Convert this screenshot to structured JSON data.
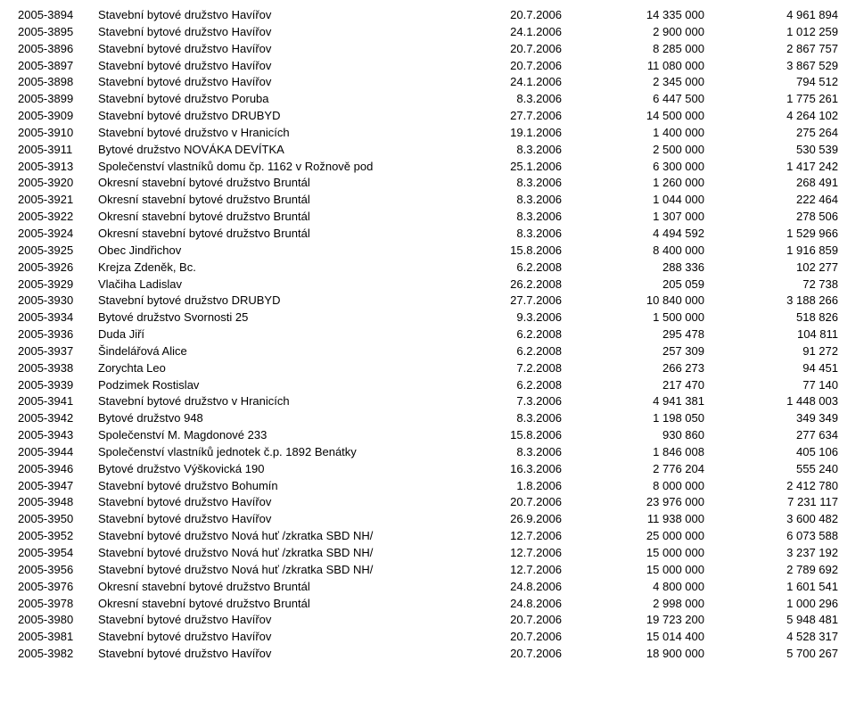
{
  "rows": [
    {
      "id": "2005-3894",
      "name": "Stavební bytové družstvo Havířov",
      "date": "20.7.2006",
      "amt1": "14 335 000",
      "amt2": "4 961 894"
    },
    {
      "id": "2005-3895",
      "name": "Stavební bytové družstvo Havířov",
      "date": "24.1.2006",
      "amt1": "2 900 000",
      "amt2": "1 012 259"
    },
    {
      "id": "2005-3896",
      "name": "Stavební bytové družstvo Havířov",
      "date": "20.7.2006",
      "amt1": "8 285 000",
      "amt2": "2 867 757"
    },
    {
      "id": "2005-3897",
      "name": "Stavební bytové družstvo Havířov",
      "date": "20.7.2006",
      "amt1": "11 080 000",
      "amt2": "3 867 529"
    },
    {
      "id": "2005-3898",
      "name": "Stavební bytové družstvo Havířov",
      "date": "24.1.2006",
      "amt1": "2 345 000",
      "amt2": "794 512"
    },
    {
      "id": "2005-3899",
      "name": "Stavební bytové družstvo Poruba",
      "date": "8.3.2006",
      "amt1": "6 447 500",
      "amt2": "1 775 261"
    },
    {
      "id": "2005-3909",
      "name": "Stavební bytové družstvo DRUBYD",
      "date": "27.7.2006",
      "amt1": "14 500 000",
      "amt2": "4 264 102"
    },
    {
      "id": "2005-3910",
      "name": "Stavební bytové družstvo v Hranicích",
      "date": "19.1.2006",
      "amt1": "1 400 000",
      "amt2": "275 264"
    },
    {
      "id": "2005-3911",
      "name": "Bytové družstvo NOVÁKA DEVÍTKA",
      "date": "8.3.2006",
      "amt1": "2 500 000",
      "amt2": "530 539"
    },
    {
      "id": "2005-3913",
      "name": "Společenství vlastníků domu čp. 1162 v Rožnově pod",
      "date": "25.1.2006",
      "amt1": "6 300 000",
      "amt2": "1 417 242"
    },
    {
      "id": "2005-3920",
      "name": "Okresní stavební bytové družstvo Bruntál",
      "date": "8.3.2006",
      "amt1": "1 260 000",
      "amt2": "268 491"
    },
    {
      "id": "2005-3921",
      "name": "Okresní stavební bytové družstvo Bruntál",
      "date": "8.3.2006",
      "amt1": "1 044 000",
      "amt2": "222 464"
    },
    {
      "id": "2005-3922",
      "name": "Okresní stavební bytové družstvo Bruntál",
      "date": "8.3.2006",
      "amt1": "1 307 000",
      "amt2": "278 506"
    },
    {
      "id": "2005-3924",
      "name": "Okresní stavební bytové družstvo Bruntál",
      "date": "8.3.2006",
      "amt1": "4 494 592",
      "amt2": "1 529 966"
    },
    {
      "id": "2005-3925",
      "name": "Obec Jindřichov",
      "date": "15.8.2006",
      "amt1": "8 400 000",
      "amt2": "1 916 859"
    },
    {
      "id": "2005-3926",
      "name": "Krejza Zdeněk, Bc.",
      "date": "6.2.2008",
      "amt1": "288 336",
      "amt2": "102 277"
    },
    {
      "id": "2005-3929",
      "name": "Vlačiha Ladislav",
      "date": "26.2.2008",
      "amt1": "205 059",
      "amt2": "72 738"
    },
    {
      "id": "2005-3930",
      "name": "Stavební bytové družstvo DRUBYD",
      "date": "27.7.2006",
      "amt1": "10 840 000",
      "amt2": "3 188 266"
    },
    {
      "id": "2005-3934",
      "name": "Bytové družstvo Svornosti 25",
      "date": "9.3.2006",
      "amt1": "1 500 000",
      "amt2": "518 826"
    },
    {
      "id": "2005-3936",
      "name": "Duda Jiří",
      "date": "6.2.2008",
      "amt1": "295 478",
      "amt2": "104 811"
    },
    {
      "id": "2005-3937",
      "name": "Šindelářová Alice",
      "date": "6.2.2008",
      "amt1": "257 309",
      "amt2": "91 272"
    },
    {
      "id": "2005-3938",
      "name": "Zorychta Leo",
      "date": "7.2.2008",
      "amt1": "266 273",
      "amt2": "94 451"
    },
    {
      "id": "2005-3939",
      "name": "Podzimek Rostislav",
      "date": "6.2.2008",
      "amt1": "217 470",
      "amt2": "77 140"
    },
    {
      "id": "2005-3941",
      "name": "Stavební bytové družstvo v Hranicích",
      "date": "7.3.2006",
      "amt1": "4 941 381",
      "amt2": "1 448 003"
    },
    {
      "id": "2005-3942",
      "name": "Bytové družstvo 948",
      "date": "8.3.2006",
      "amt1": "1 198 050",
      "amt2": "349 349"
    },
    {
      "id": "2005-3943",
      "name": "Společenství M. Magdonové 233",
      "date": "15.8.2006",
      "amt1": "930 860",
      "amt2": "277 634"
    },
    {
      "id": "2005-3944",
      "name": "Společenství vlastníků jednotek č.p. 1892 Benátky",
      "date": "8.3.2006",
      "amt1": "1 846 008",
      "amt2": "405 106"
    },
    {
      "id": "2005-3946",
      "name": "Bytové družstvo Výškovická 190",
      "date": "16.3.2006",
      "amt1": "2 776 204",
      "amt2": "555 240"
    },
    {
      "id": "2005-3947",
      "name": "Stavební bytové družstvo Bohumín",
      "date": "1.8.2006",
      "amt1": "8 000 000",
      "amt2": "2 412 780"
    },
    {
      "id": "2005-3948",
      "name": "Stavební bytové družstvo Havířov",
      "date": "20.7.2006",
      "amt1": "23 976 000",
      "amt2": "7 231 117"
    },
    {
      "id": "2005-3950",
      "name": "Stavební bytové družstvo Havířov",
      "date": "26.9.2006",
      "amt1": "11 938 000",
      "amt2": "3 600 482"
    },
    {
      "id": "2005-3952",
      "name": "Stavební bytové družstvo Nová huť /zkratka SBD NH/",
      "date": "12.7.2006",
      "amt1": "25 000 000",
      "amt2": "6 073 588"
    },
    {
      "id": "2005-3954",
      "name": "Stavební bytové družstvo Nová huť /zkratka SBD NH/",
      "date": "12.7.2006",
      "amt1": "15 000 000",
      "amt2": "3 237 192"
    },
    {
      "id": "2005-3956",
      "name": "Stavební bytové družstvo Nová huť /zkratka SBD NH/",
      "date": "12.7.2006",
      "amt1": "15 000 000",
      "amt2": "2 789 692"
    },
    {
      "id": "2005-3976",
      "name": "Okresní stavební bytové družstvo Bruntál",
      "date": "24.8.2006",
      "amt1": "4 800 000",
      "amt2": "1 601 541"
    },
    {
      "id": "2005-3978",
      "name": "Okresní stavební bytové družstvo Bruntál",
      "date": "24.8.2006",
      "amt1": "2 998 000",
      "amt2": "1 000 296"
    },
    {
      "id": "2005-3980",
      "name": "Stavební bytové družstvo Havířov",
      "date": "20.7.2006",
      "amt1": "19 723 200",
      "amt2": "5 948 481"
    },
    {
      "id": "2005-3981",
      "name": "Stavební bytové družstvo Havířov",
      "date": "20.7.2006",
      "amt1": "15 014 400",
      "amt2": "4 528 317"
    },
    {
      "id": "2005-3982",
      "name": "Stavební bytové družstvo Havířov",
      "date": "20.7.2006",
      "amt1": "18 900 000",
      "amt2": "5 700 267"
    }
  ]
}
